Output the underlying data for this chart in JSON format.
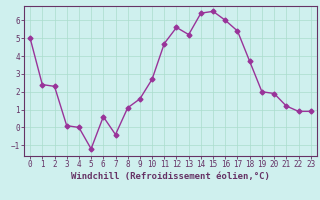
{
  "x": [
    0,
    1,
    2,
    3,
    4,
    5,
    6,
    7,
    8,
    9,
    10,
    11,
    12,
    13,
    14,
    15,
    16,
    17,
    18,
    19,
    20,
    21,
    22,
    23
  ],
  "y": [
    5.0,
    2.4,
    2.3,
    0.1,
    0.0,
    -1.2,
    0.6,
    -0.4,
    1.1,
    1.6,
    2.7,
    4.7,
    5.6,
    5.2,
    6.4,
    6.5,
    6.0,
    5.4,
    3.7,
    2.0,
    1.9,
    1.2,
    0.9,
    0.9
  ],
  "line_color": "#993399",
  "marker": "D",
  "marker_size": 2.5,
  "bg_color": "#cff0ee",
  "grid_color": "#aaddcc",
  "spine_color": "#663366",
  "xlabel": "Windchill (Refroidissement éolien,°C)",
  "xlim": [
    -0.5,
    23.5
  ],
  "ylim": [
    -1.6,
    6.8
  ],
  "yticks": [
    -1,
    0,
    1,
    2,
    3,
    4,
    5,
    6
  ],
  "xticks": [
    0,
    1,
    2,
    3,
    4,
    5,
    6,
    7,
    8,
    9,
    10,
    11,
    12,
    13,
    14,
    15,
    16,
    17,
    18,
    19,
    20,
    21,
    22,
    23
  ],
  "tick_color": "#663366",
  "xlabel_fontsize": 6.5,
  "tick_fontsize": 5.5,
  "linewidth": 1.0
}
